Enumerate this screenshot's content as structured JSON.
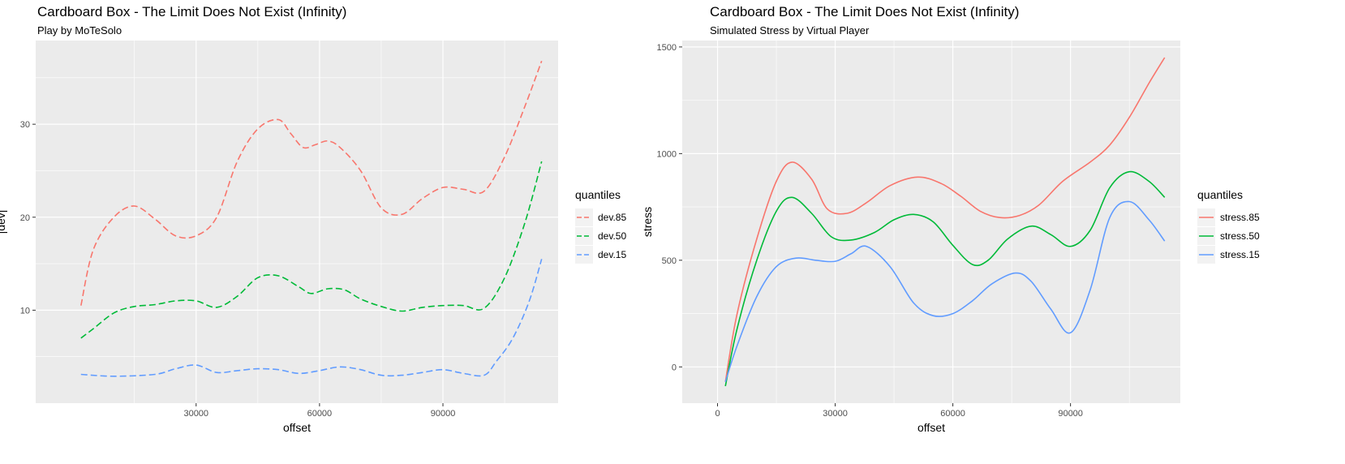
{
  "colors": {
    "red": "#F8766D",
    "green": "#00BA38",
    "blue": "#619CFF",
    "panel_bg": "#EBEBEB",
    "grid": "#FFFFFF"
  },
  "chart_data": [
    {
      "type": "line",
      "title": "Cardboard Box - The Limit Does Not Exist (Infinity)",
      "subtitle": "Play by MoTeSolo",
      "xlabel": "offset",
      "ylabel": "|dev|",
      "xlim": [
        -9000,
        118000
      ],
      "ylim": [
        0,
        39
      ],
      "xticks": [
        30000,
        60000,
        90000
      ],
      "xtick_labels": [
        "30000",
        "60000",
        "90000"
      ],
      "yticks": [
        10,
        20,
        30
      ],
      "ytick_labels": [
        "10",
        "20",
        "30"
      ],
      "line_style": "dashed",
      "legend": {
        "title": "quantiles",
        "position": "right"
      },
      "series": [
        {
          "name": "dev.85",
          "color": "#F8766D",
          "x": [
            2000,
            5000,
            10000,
            15000,
            20000,
            25000,
            30000,
            35000,
            40000,
            45000,
            50000,
            53000,
            56000,
            59000,
            62000,
            65000,
            70000,
            75000,
            80000,
            85000,
            90000,
            95000,
            100000,
            105000,
            110000,
            114000
          ],
          "y": [
            10.5,
            16.5,
            20.0,
            21.2,
            19.8,
            18.0,
            18.0,
            20.0,
            26.0,
            29.5,
            30.5,
            29.0,
            27.5,
            27.8,
            28.2,
            27.5,
            25.0,
            21.0,
            20.3,
            22.0,
            23.2,
            23.0,
            22.8,
            26.5,
            32.0,
            36.8
          ]
        },
        {
          "name": "dev.50",
          "color": "#00BA38",
          "x": [
            2000,
            5000,
            10000,
            15000,
            20000,
            25000,
            30000,
            35000,
            40000,
            45000,
            50000,
            55000,
            58000,
            62000,
            66000,
            70000,
            75000,
            80000,
            85000,
            90000,
            95000,
            100000,
            105000,
            110000,
            114000
          ],
          "y": [
            7.0,
            8.0,
            9.7,
            10.4,
            10.6,
            11.0,
            11.0,
            10.3,
            11.5,
            13.5,
            13.7,
            12.5,
            11.8,
            12.3,
            12.2,
            11.2,
            10.4,
            9.9,
            10.3,
            10.5,
            10.5,
            10.2,
            13.5,
            19.5,
            26.0
          ]
        },
        {
          "name": "dev.15",
          "color": "#619CFF",
          "x": [
            2000,
            10000,
            20000,
            25000,
            30000,
            35000,
            40000,
            45000,
            50000,
            55000,
            60000,
            65000,
            70000,
            75000,
            80000,
            85000,
            90000,
            95000,
            100000,
            103000,
            107000,
            111000,
            114000
          ],
          "y": [
            3.1,
            2.9,
            3.1,
            3.7,
            4.1,
            3.3,
            3.5,
            3.7,
            3.6,
            3.2,
            3.5,
            3.9,
            3.6,
            3.0,
            3.0,
            3.3,
            3.6,
            3.2,
            3.0,
            4.5,
            7.0,
            11.0,
            15.5
          ]
        }
      ]
    },
    {
      "type": "line",
      "title": "Cardboard Box - The Limit Does Not Exist (Infinity)",
      "subtitle": "Simulated Stress by Virtual Player",
      "xlabel": "offset",
      "ylabel": "stress",
      "xlim": [
        -9000,
        118000
      ],
      "ylim": [
        -170,
        1530
      ],
      "xticks": [
        0,
        30000,
        60000,
        90000
      ],
      "xtick_labels": [
        "0",
        "30000",
        "60000",
        "90000"
      ],
      "yticks": [
        0,
        500,
        1000,
        1500
      ],
      "ytick_labels": [
        "0",
        "500",
        "1000",
        "1500"
      ],
      "line_style": "solid",
      "legend": {
        "title": "quantiles",
        "position": "right"
      },
      "series": [
        {
          "name": "stress.85",
          "color": "#F8766D",
          "x": [
            2000,
            5000,
            10000,
            15000,
            19000,
            24000,
            28000,
            33000,
            38000,
            44000,
            51000,
            57000,
            62000,
            67000,
            72000,
            77000,
            82000,
            88000,
            95000,
            100000,
            105000,
            110000,
            114000
          ],
          "y": [
            -70,
            250,
            600,
            870,
            960,
            880,
            740,
            720,
            770,
            850,
            890,
            860,
            800,
            730,
            700,
            710,
            760,
            870,
            960,
            1040,
            1170,
            1330,
            1450
          ]
        },
        {
          "name": "stress.50",
          "color": "#00BA38",
          "x": [
            2000,
            5000,
            10000,
            15000,
            19000,
            24000,
            29000,
            34000,
            40000,
            45000,
            50000,
            55000,
            60000,
            65000,
            69000,
            74000,
            80000,
            85000,
            90000,
            95000,
            100000,
            105000,
            110000,
            114000
          ],
          "y": [
            -90,
            180,
            500,
            730,
            795,
            720,
            610,
            595,
            630,
            690,
            715,
            680,
            570,
            480,
            500,
            600,
            660,
            620,
            565,
            640,
            840,
            915,
            870,
            795
          ]
        },
        {
          "name": "stress.15",
          "color": "#619CFF",
          "x": [
            2000,
            5000,
            10000,
            15000,
            20000,
            25000,
            30000,
            34000,
            38000,
            44000,
            50000,
            55000,
            60000,
            65000,
            70000,
            76000,
            80000,
            85000,
            90000,
            95000,
            100000,
            105000,
            110000,
            114000
          ],
          "y": [
            -70,
            100,
            330,
            470,
            510,
            500,
            495,
            530,
            565,
            470,
            300,
            240,
            250,
            310,
            390,
            440,
            400,
            270,
            160,
            360,
            700,
            775,
            690,
            590
          ]
        }
      ]
    }
  ]
}
